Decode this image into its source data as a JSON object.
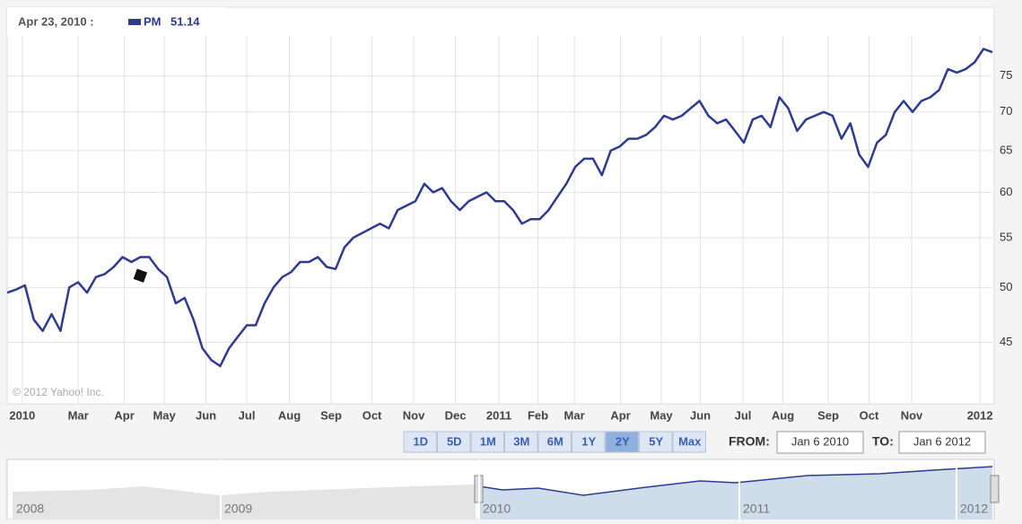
{
  "chart_data": {
    "type": "line",
    "log_scale": true,
    "grid": true,
    "hover": {
      "label": "Apr 23, 2010 :",
      "value": 51.14
    },
    "series": [
      {
        "name": "PM",
        "color": "#2e3b8f",
        "values": [
          49.5,
          49.8,
          50.2,
          47,
          46,
          47.5,
          46,
          50,
          50.5,
          49.5,
          51,
          51.3,
          52,
          53,
          52.5,
          53,
          53,
          51.8,
          51,
          48.5,
          49,
          47,
          44.5,
          43.5,
          43,
          44.5,
          45.5,
          46.5,
          46.5,
          48.5,
          50,
          51,
          51.5,
          52.5,
          52.5,
          53,
          52,
          51.8,
          54,
          55,
          55.5,
          56,
          56.5,
          56,
          58,
          58.5,
          59,
          61,
          60,
          60.5,
          59,
          58,
          59,
          59.5,
          60,
          59,
          59,
          58,
          56.5,
          57,
          57,
          58,
          59.5,
          61,
          63,
          64,
          64,
          62,
          65,
          65.5,
          66.5,
          66.5,
          67,
          68,
          69.5,
          69,
          69.5,
          70.5,
          71.5,
          69.5,
          68.5,
          69,
          67.5,
          66,
          69,
          69.5,
          68,
          72,
          70.5,
          67.5,
          69,
          69.5,
          70,
          69.5,
          66.5,
          68.5,
          64.5,
          63,
          66,
          67,
          70,
          71.5,
          70,
          71.5,
          72,
          73,
          76,
          75.5,
          76,
          77,
          79,
          78.5
        ]
      }
    ],
    "xlim": [
      0,
      111
    ],
    "xticks": [
      {
        "value": 1.7,
        "label": "2010"
      },
      {
        "value": 8,
        "label": "Mar"
      },
      {
        "value": 13.2,
        "label": "Apr"
      },
      {
        "value": 17.7,
        "label": "May"
      },
      {
        "value": 22.4,
        "label": "Jun"
      },
      {
        "value": 27,
        "label": "Jul"
      },
      {
        "value": 31.8,
        "label": "Aug"
      },
      {
        "value": 36.5,
        "label": "Sep"
      },
      {
        "value": 41.1,
        "label": "Oct"
      },
      {
        "value": 45.8,
        "label": "Nov"
      },
      {
        "value": 50.5,
        "label": "Dec"
      },
      {
        "value": 55.4,
        "label": "2011"
      },
      {
        "value": 59.8,
        "label": "Feb"
      },
      {
        "value": 63.9,
        "label": "Mar"
      },
      {
        "value": 69.1,
        "label": "Apr"
      },
      {
        "value": 73.7,
        "label": "May"
      },
      {
        "value": 78.1,
        "label": "Jun"
      },
      {
        "value": 82.9,
        "label": "Jul"
      },
      {
        "value": 87.4,
        "label": "Aug"
      },
      {
        "value": 92.5,
        "label": "Sep"
      },
      {
        "value": 97.1,
        "label": "Oct"
      },
      {
        "value": 101.9,
        "label": "Nov"
      },
      {
        "value": 109.6,
        "label": "2012"
      }
    ],
    "ylim": [
      40,
      81
    ],
    "yticks": [
      45,
      50,
      55,
      60,
      65,
      70,
      75
    ],
    "copyright": "© 2012 Yahoo! Inc."
  },
  "controls": {
    "ranges": [
      "1D",
      "5D",
      "1M",
      "3M",
      "6M",
      "1Y",
      "2Y",
      "5Y",
      "Max"
    ],
    "selected": "2Y",
    "from_label": "FROM:",
    "from": "Jan 6 2010",
    "to_label": "TO:",
    "to": "Jan 6 2012"
  },
  "navigator": {
    "labels": [
      "2008",
      "2009",
      "2010",
      "2011",
      "2012"
    ]
  }
}
